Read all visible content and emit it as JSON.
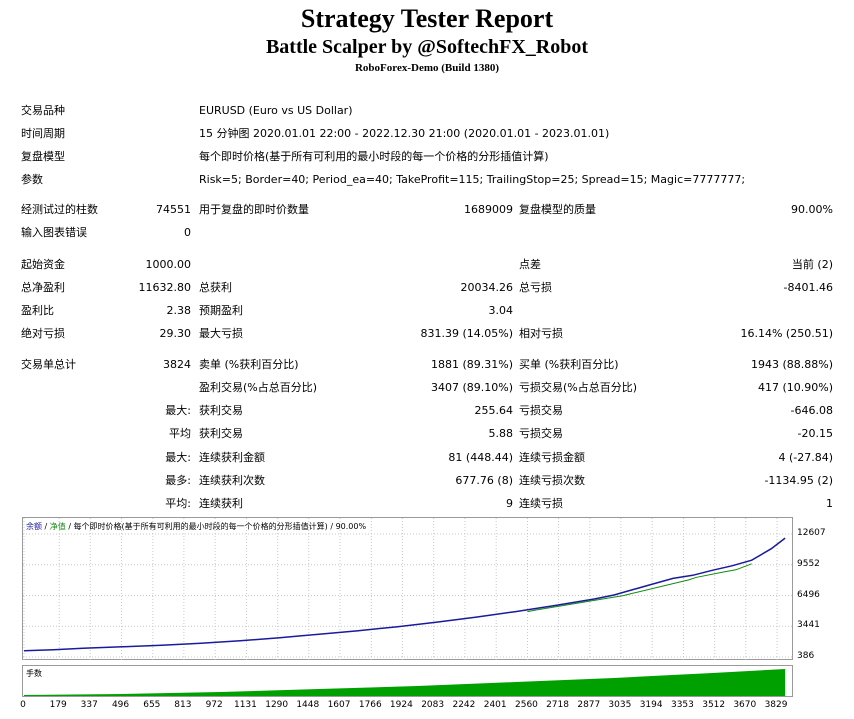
{
  "header": {
    "title": "Strategy Tester Report",
    "subtitle": "Battle Scalper by @SoftechFX_Robot",
    "server": "RoboForex-Demo (Build 1380)"
  },
  "info": {
    "symbol_label": "交易品种",
    "symbol_value": "EURUSD (Euro vs US Dollar)",
    "period_label": "时间周期",
    "period_value": "15 分钟图 2020.01.01 22:00 - 2022.12.30 21:00 (2020.01.01 - 2023.01.01)",
    "model_label": "复盘模型",
    "model_value": "每个即时价格(基于所有可利用的最小时段的每一个价格的分形插值计算)",
    "params_label": "参数",
    "params_value": "Risk=5; Border=40; Period_ea=40; TakeProfit=115; TrailingStop=25; Spread=15; Magic=7777777;"
  },
  "test": {
    "bars_label": "经测试过的柱数",
    "bars_value": "74551",
    "ticks_label": "用于复盘的即时价数量",
    "ticks_value": "1689009",
    "quality_label": "复盘模型的质量",
    "quality_value": "90.00%",
    "errors_label": "输入图表错误",
    "errors_value": "0"
  },
  "stats": {
    "deposit_label": "起始资金",
    "deposit_value": "1000.00",
    "spread_label": "点差",
    "spread_value": "当前 (2)",
    "net_label": "总净盈利",
    "net_value": "11632.80",
    "gross_profit_label": "总获利",
    "gross_profit_value": "20034.26",
    "gross_loss_label": "总亏损",
    "gross_loss_value": "-8401.46",
    "pf_label": "盈利比",
    "pf_value": "2.38",
    "expected_label": "预期盈利",
    "expected_value": "3.04",
    "abs_dd_label": "绝对亏损",
    "abs_dd_value": "29.30",
    "max_dd_label": "最大亏损",
    "max_dd_value": "831.39 (14.05%)",
    "rel_dd_label": "相对亏损",
    "rel_dd_value": "16.14% (250.51)"
  },
  "trades": {
    "total_label": "交易单总计",
    "total_value": "3824",
    "short_label": "卖单 (%获利百分比)",
    "short_value": "1881 (89.31%)",
    "long_label": "买单 (%获利百分比)",
    "long_value": "1943 (88.88%)",
    "profit_trades_label": "盈利交易(%占总百分比)",
    "profit_trades_value": "3407 (89.10%)",
    "loss_trades_label": "亏损交易(%占总百分比)",
    "loss_trades_value": "417 (10.90%)",
    "largest_prefix": "最大:",
    "largest_profit_label": "获利交易",
    "largest_profit_value": "255.64",
    "largest_loss_label": "亏损交易",
    "largest_loss_value": "-646.08",
    "average_prefix": "平均",
    "avg_profit_label": "获利交易",
    "avg_profit_value": "5.88",
    "avg_loss_label": "亏损交易",
    "avg_loss_value": "-20.15",
    "max_prefix": "最大:",
    "max_cons_wins_label": "连续获利金额",
    "max_cons_wins_value": "81 (448.44)",
    "max_cons_losses_label": "连续亏损金额",
    "max_cons_losses_value": "4 (-27.84)",
    "maximal_prefix": "最多:",
    "maximal_cons_profit_label": "连续获利次数",
    "maximal_cons_profit_value": "677.76 (8)",
    "maximal_cons_loss_label": "连续亏损次数",
    "maximal_cons_loss_value": "-1134.95 (2)",
    "avg_prefix": "平均:",
    "avg_cons_wins_label": "连续获利",
    "avg_cons_wins_value": "9",
    "avg_cons_losses_label": "连续亏损",
    "avg_cons_losses_value": "1"
  },
  "chart": {
    "legend_balance": "余额",
    "legend_sep": " / ",
    "legend_equity": "净值",
    "legend_rest": " / 每个即时价格(基于所有可利用的最小时段的每一个价格的分形插值计算) / 90.00%",
    "volume_label": "手数",
    "colors": {
      "balance": "#1a1a9c",
      "equity": "#108a10",
      "volume": "#00a000"
    }
  },
  "chart_data": {
    "type": "line",
    "series": [
      {
        "name": "余额",
        "x": [
          0,
          150,
          300,
          500,
          700,
          900,
          1100,
          1300,
          1500,
          1700,
          1900,
          2100,
          2300,
          2500,
          2700,
          2900,
          3000,
          3100,
          3200,
          3300,
          3400,
          3500,
          3600,
          3700,
          3800,
          3870
        ],
        "values": [
          1000,
          1100,
          1250,
          1400,
          1550,
          1750,
          2000,
          2300,
          2650,
          3000,
          3400,
          3850,
          4350,
          4900,
          5500,
          6150,
          6550,
          7100,
          7650,
          8200,
          8500,
          9000,
          9450,
          10000,
          11150,
          12200
        ]
      },
      {
        "name": "净值",
        "x": [
          2560,
          2600,
          3050,
          3090,
          3380,
          3420,
          3550,
          3620,
          3700
        ],
        "values": [
          4900,
          5050,
          6500,
          6700,
          8050,
          8300,
          8800,
          9050,
          9650
        ]
      }
    ],
    "volume": {
      "x": [
        0,
        500,
        1000,
        1500,
        2000,
        2500,
        3000,
        3500,
        3870
      ],
      "values": [
        0.5,
        1,
        2,
        3.5,
        5,
        7,
        9,
        11.5,
        13.5
      ]
    },
    "yticks": [
      12607,
      9552,
      6496,
      3441,
      386
    ],
    "xticks": [
      0,
      179,
      337,
      496,
      655,
      813,
      972,
      1131,
      1290,
      1448,
      1607,
      1766,
      1924,
      2083,
      2242,
      2401,
      2560,
      2718,
      2877,
      3035,
      3194,
      3353,
      3512,
      3670,
      3829
    ],
    "ylim": [
      386,
      12607
    ],
    "xlim": [
      0,
      3900
    ],
    "grid": true
  }
}
